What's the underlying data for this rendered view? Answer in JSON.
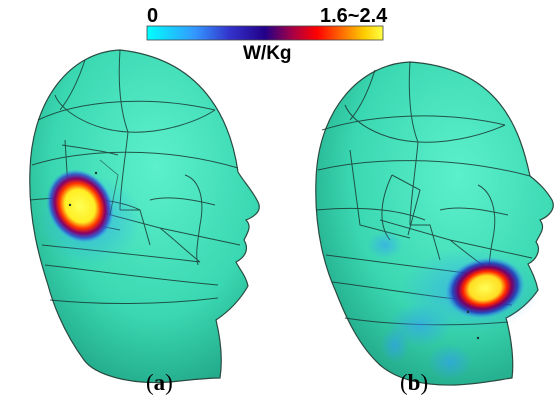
{
  "legend": {
    "min_label": "0",
    "max_label": "1.6~2.4",
    "unit": "W/Kg",
    "colormap": [
      "#00ffff",
      "#3399ff",
      "#3333cc",
      "#220088",
      "#aa0044",
      "#ff0000",
      "#ff6600",
      "#ffcc00",
      "#ffff44"
    ]
  },
  "colors": {
    "head": "#3de0b8",
    "head_shade": "#1fa88a",
    "mesh_line": "#1a3a33"
  },
  "panels": [
    {
      "open": "(",
      "letter": "a",
      "close": ")"
    },
    {
      "open": "(",
      "letter": "b",
      "close": ")"
    }
  ]
}
